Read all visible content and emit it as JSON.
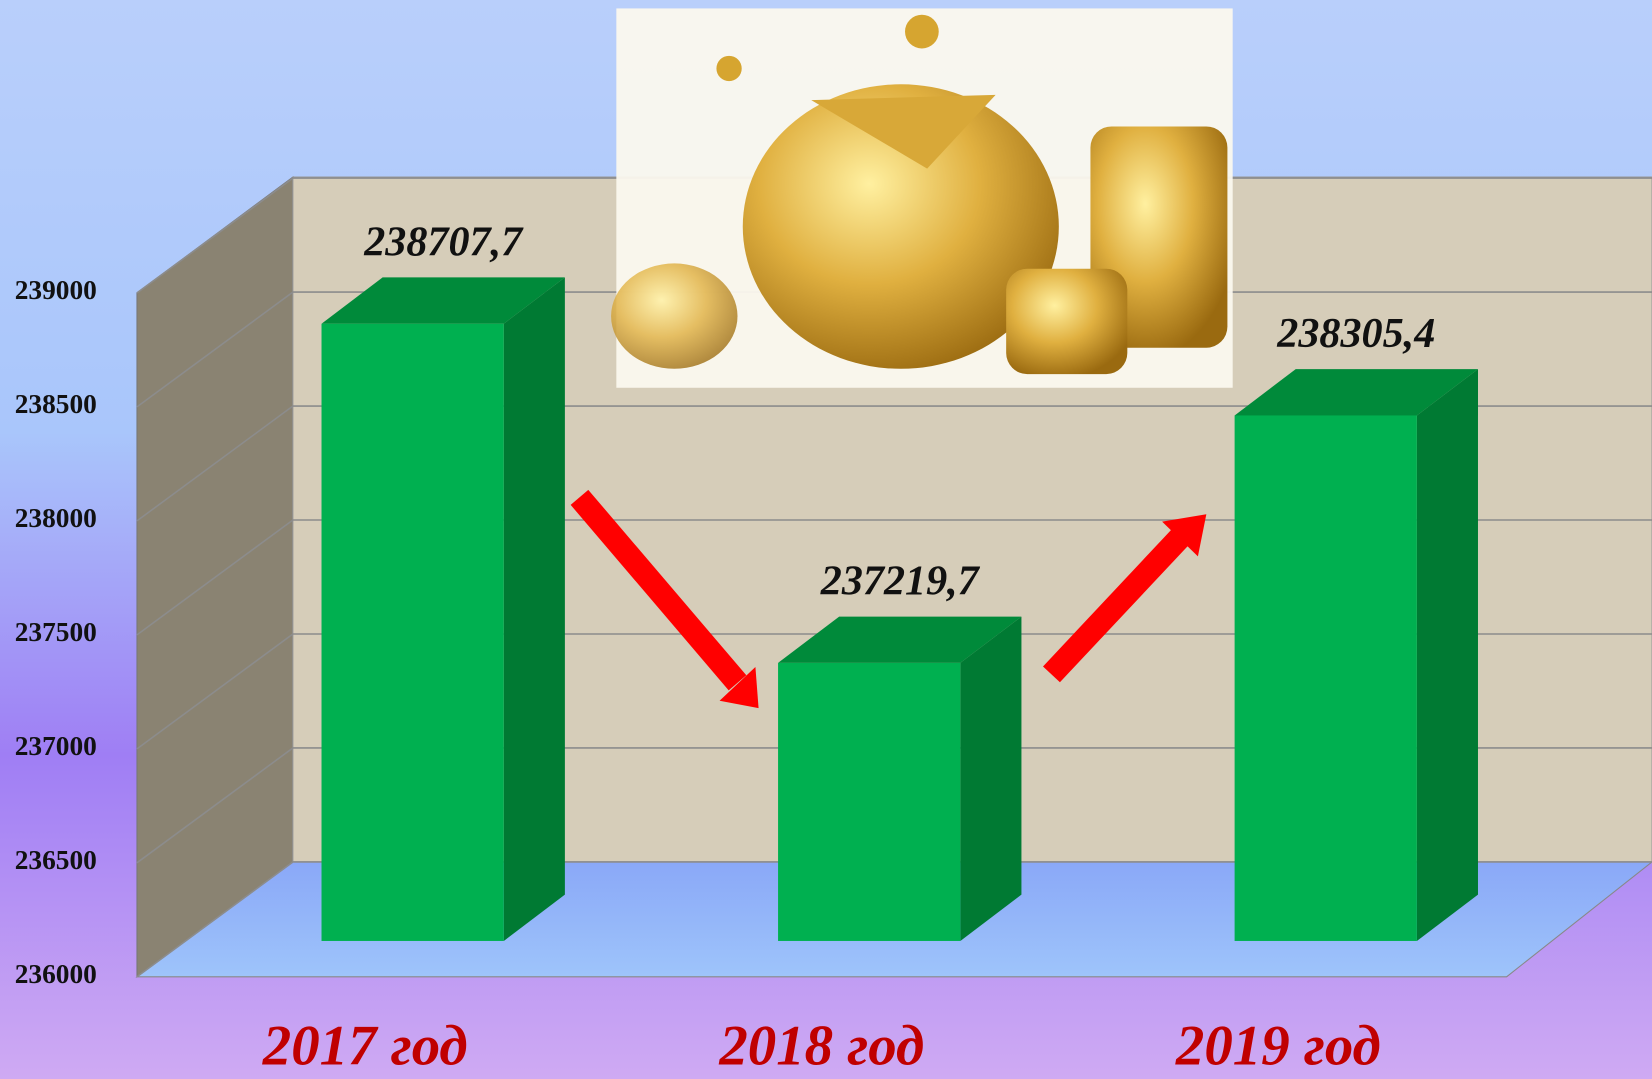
{
  "chart_data": {
    "type": "bar3d",
    "categories": [
      "2017 год",
      "2018 год",
      "2019 год"
    ],
    "values": [
      238707.7,
      237219.7,
      238305.4
    ],
    "value_labels": [
      "238707,7",
      "237219,7",
      "238305,4"
    ],
    "color": "#00b050",
    "ylim": [
      236000,
      239000
    ],
    "yticks": [
      236000,
      236500,
      237000,
      237500,
      238000,
      238500,
      239000
    ],
    "grid": true
  }
}
